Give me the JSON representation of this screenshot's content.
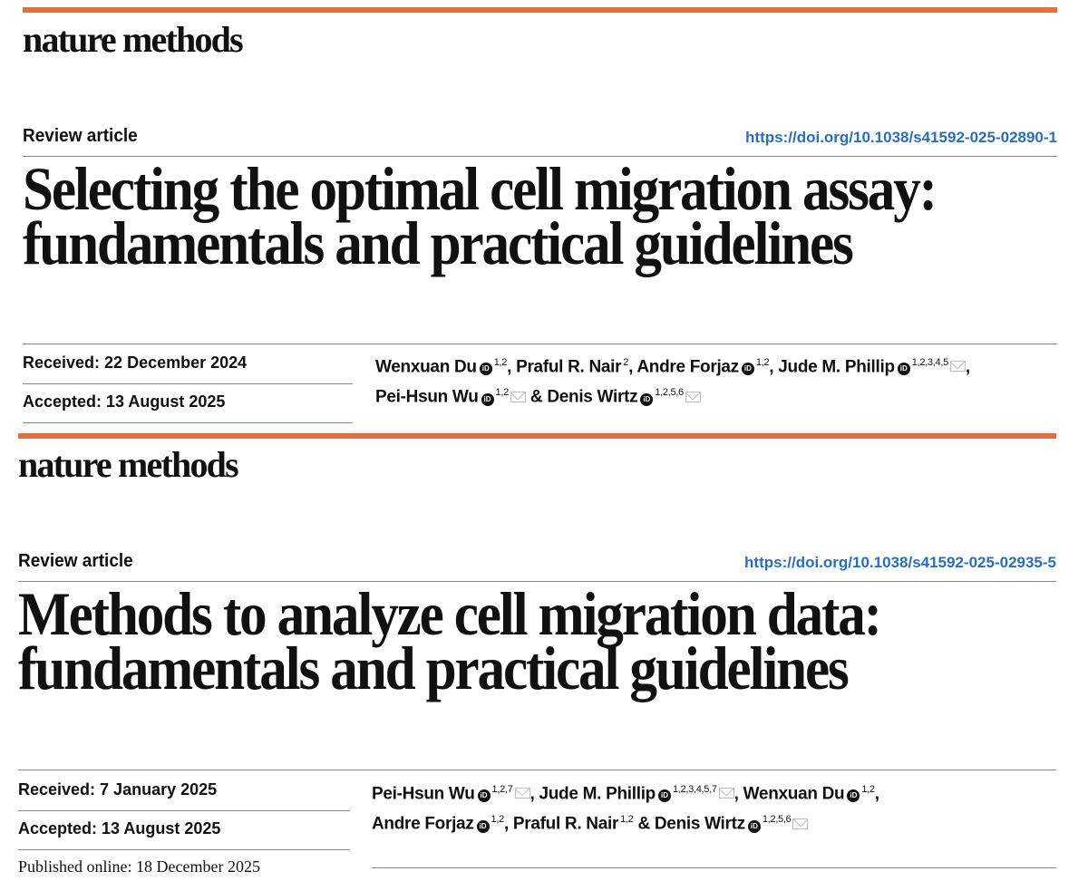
{
  "colors": {
    "accent_bar": "#e07040",
    "doi_link": "#2a6ebb"
  },
  "articles": [
    {
      "journal": "nature methods",
      "article_type": "Review article",
      "doi": "https://doi.org/10.1038/s41592-025-02890-1",
      "title_lines": [
        "Selecting the optimal cell migration assay:",
        "fundamentals and practical guidelines"
      ],
      "received": "Received: 22 December 2024",
      "accepted": "Accepted: 13 August 2025",
      "authors": [
        {
          "name": "Wenxuan Du",
          "orcid": true,
          "aff": "1,2",
          "email": false,
          "sep": ", "
        },
        {
          "name": "Praful R. Nair",
          "orcid": false,
          "aff": "2",
          "email": false,
          "sep": ", "
        },
        {
          "name": "Andre Forjaz",
          "orcid": true,
          "aff": "1,2",
          "email": false,
          "sep": ", "
        },
        {
          "name": "Jude M. Phillip",
          "orcid": true,
          "aff": "1,2,3,4,5",
          "email": true,
          "sep": ","
        },
        {
          "name": "Pei-Hsun Wu",
          "orcid": true,
          "aff": "1,2",
          "email": true,
          "sep": " & "
        },
        {
          "name": "Denis Wirtz",
          "orcid": true,
          "aff": "1,2,5,6",
          "email": true,
          "sep": ""
        }
      ]
    },
    {
      "journal": "nature methods",
      "article_type": "Review article",
      "doi": "https://doi.org/10.1038/s41592-025-02935-5",
      "title_lines": [
        "Methods to analyze cell migration data:",
        "fundamentals and practical guidelines"
      ],
      "received": "Received: 7 January 2025",
      "accepted": "Accepted: 13 August 2025",
      "published": "Published online: 18 December 2025",
      "authors": [
        {
          "name": "Pei-Hsun Wu",
          "orcid": true,
          "aff": "1,2,7",
          "email": true,
          "sep": ", "
        },
        {
          "name": "Jude M. Phillip",
          "orcid": true,
          "aff": "1,2,3,4,5,7",
          "email": true,
          "sep": ", "
        },
        {
          "name": "Wenxuan Du",
          "orcid": true,
          "aff": "1,2",
          "email": false,
          "sep": ","
        },
        {
          "name": "Andre Forjaz",
          "orcid": true,
          "aff": "1,2",
          "email": false,
          "sep": ", "
        },
        {
          "name": "Praful R. Nair",
          "orcid": false,
          "aff": "1,2",
          "email": false,
          "sep": " & "
        },
        {
          "name": "Denis Wirtz",
          "orcid": true,
          "aff": "1,2,5,6",
          "email": true,
          "sep": ""
        }
      ]
    }
  ]
}
